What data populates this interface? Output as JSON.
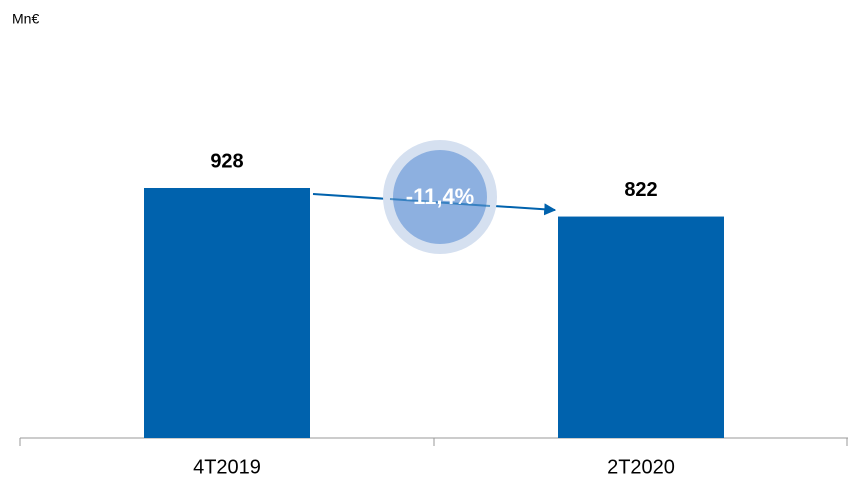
{
  "chart_data": {
    "type": "bar",
    "y_label": "Mn€",
    "annotation": "-11,4%",
    "categories": [
      "4T2019",
      "2T2020"
    ],
    "values": [
      928,
      822
    ],
    "color": "#0062ad",
    "ylim": [
      0,
      1000
    ]
  }
}
